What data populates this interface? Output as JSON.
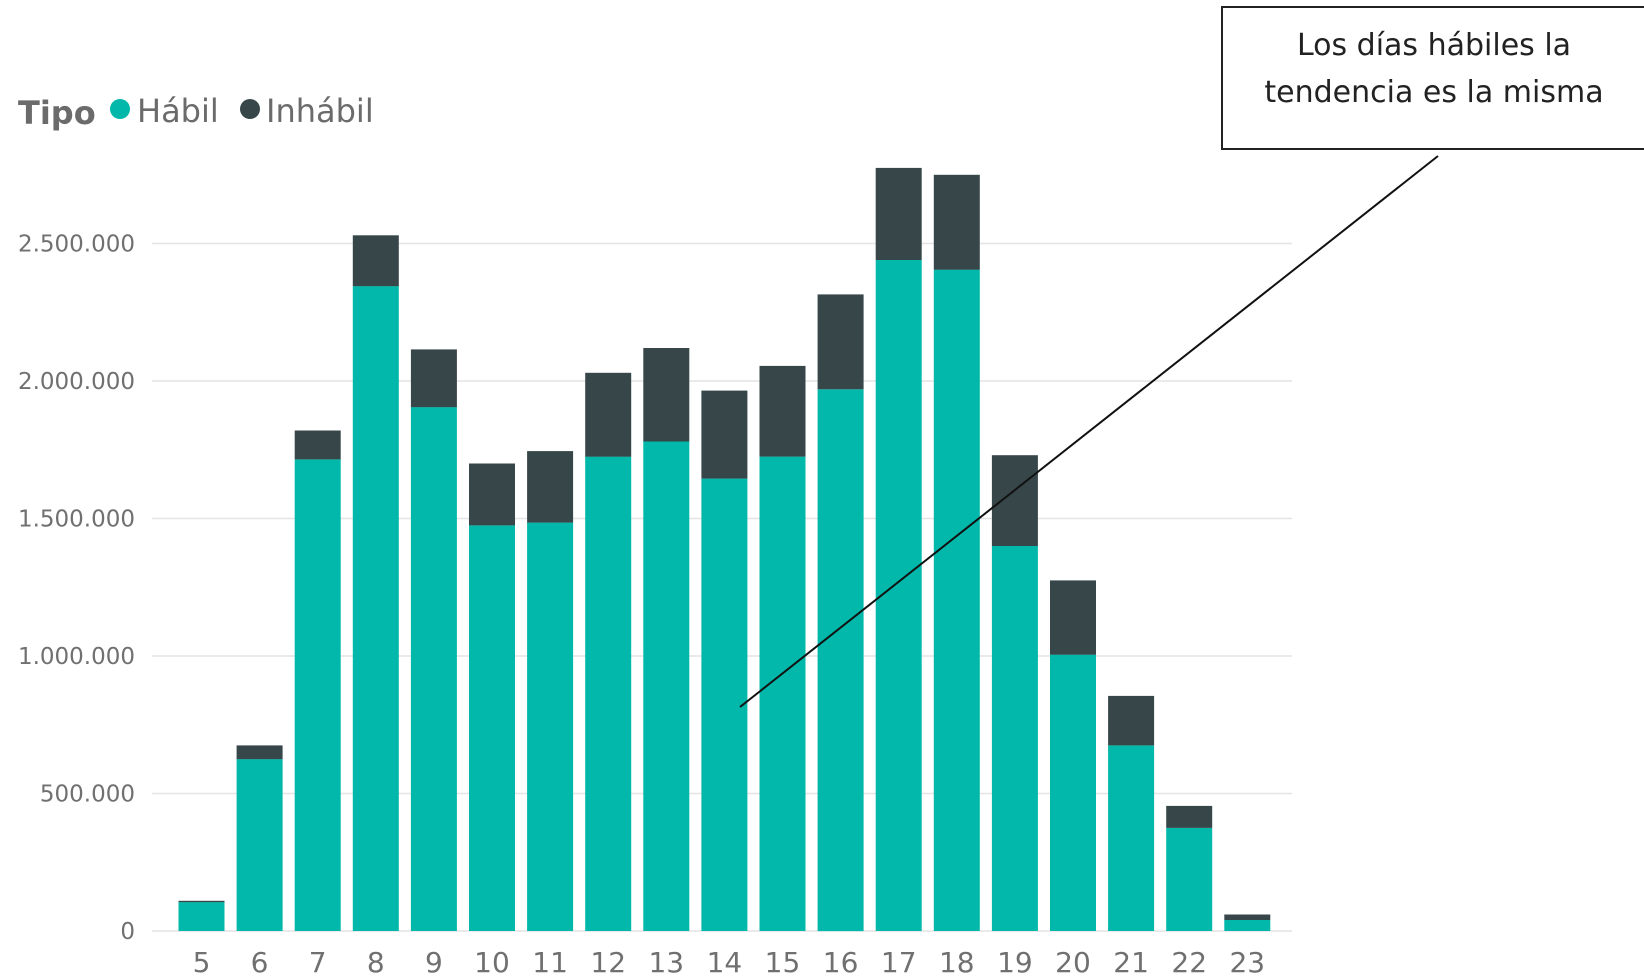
{
  "chart_data": {
    "type": "bar",
    "stacked": true,
    "categories": [
      "5",
      "6",
      "7",
      "8",
      "9",
      "10",
      "11",
      "12",
      "13",
      "14",
      "15",
      "16",
      "17",
      "18",
      "19",
      "20",
      "21",
      "22",
      "23"
    ],
    "series": [
      {
        "name": "Hábil",
        "color": "#01b8aa",
        "values": [
          105000,
          625000,
          1715000,
          2345000,
          1905000,
          1475000,
          1485000,
          1725000,
          1780000,
          1645000,
          1725000,
          1970000,
          2440000,
          2405000,
          1400000,
          1005000,
          675000,
          375000,
          40000
        ]
      },
      {
        "name": "Inhábil",
        "color": "#374649",
        "values": [
          5000,
          50000,
          105000,
          185000,
          210000,
          225000,
          260000,
          305000,
          340000,
          320000,
          330000,
          345000,
          335000,
          345000,
          330000,
          270000,
          180000,
          80000,
          20000
        ]
      }
    ],
    "legend": {
      "title": "Tipo",
      "position": "top-left"
    },
    "y_ticks": [
      0,
      500000,
      1000000,
      1500000,
      2000000,
      2500000
    ],
    "y_tick_labels": [
      "0",
      "500.000",
      "1.000.000",
      "1.500.000",
      "2.000.000",
      "2.500.000"
    ],
    "ylim": [
      0,
      2950000
    ],
    "grid": true,
    "xlabel": "",
    "ylabel": "",
    "title": "",
    "annotation": {
      "lines": [
        "Los días hábiles la",
        "tendencia es la misma"
      ],
      "points_to_category": "14"
    }
  }
}
